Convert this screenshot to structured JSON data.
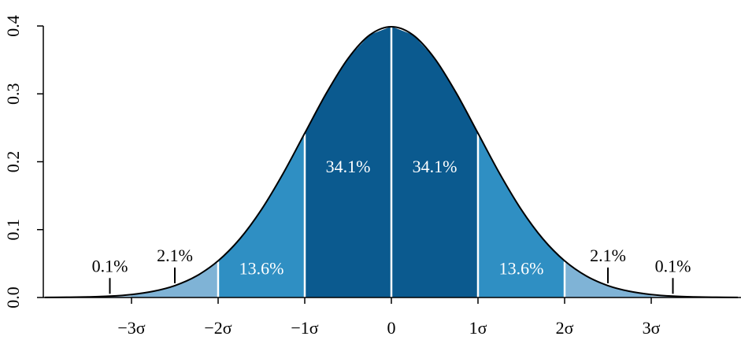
{
  "chart_data": {
    "type": "area",
    "xlim": [
      -4,
      4
    ],
    "ylim": [
      0,
      0.4
    ],
    "yticks": [
      {
        "value": 0,
        "label": "0.0"
      },
      0.1,
      0.2,
      0.3,
      0.4
    ],
    "xticks": [
      {
        "value": -3,
        "label": "−3σ"
      },
      {
        "value": -2,
        "label": "−2σ"
      },
      {
        "value": -1,
        "label": "−1σ"
      },
      0,
      {
        "value": 1,
        "label": "1σ"
      },
      {
        "value": 2,
        "label": "2σ"
      },
      {
        "value": 3,
        "label": "3σ"
      }
    ],
    "x": [
      -4,
      -3.75,
      -3.5,
      -3.25,
      -3,
      -2.75,
      -2.5,
      -2.25,
      -2,
      -1.75,
      -1.5,
      -1.25,
      -1,
      -0.75,
      -0.5,
      -0.25,
      0,
      0.25,
      0.5,
      0.75,
      1,
      1.25,
      1.5,
      1.75,
      2,
      2.25,
      2.5,
      2.75,
      3,
      3.25,
      3.5,
      3.75,
      4
    ],
    "values": [
      0.0001,
      0.0004,
      0.0009,
      0.002,
      0.0044,
      0.0091,
      0.0175,
      0.0317,
      0.054,
      0.0863,
      0.1295,
      0.1826,
      0.242,
      0.3011,
      0.3521,
      0.3867,
      0.3989,
      0.3867,
      0.3521,
      0.3011,
      0.242,
      0.1826,
      0.1295,
      0.0863,
      0.054,
      0.0317,
      0.0175,
      0.0091,
      0.0044,
      0.002,
      0.0009,
      0.0004,
      0.0001
    ],
    "line_color": "#000000",
    "regions": [
      {
        "from": null,
        "to": -3,
        "value": 0.1,
        "value_label": "0.1%",
        "color": "#a8cbe4"
      },
      {
        "from": -3,
        "to": -2,
        "value": 2.1,
        "value_label": "2.1%",
        "color": "#7fb3d6"
      },
      {
        "from": -2,
        "to": -1,
        "value": 13.6,
        "value_label": "13.6%",
        "color": "#2f8fc3"
      },
      {
        "from": -1,
        "to": 0,
        "value": 34.1,
        "value_label": "34.1%",
        "color": "#0b5a8f"
      },
      {
        "from": 0,
        "to": 1,
        "value": 34.1,
        "value_label": "34.1%",
        "color": "#0b5a8f"
      },
      {
        "from": 1,
        "to": 2,
        "value": 13.6,
        "value_label": "13.6%",
        "color": "#2f8fc3"
      },
      {
        "from": 2,
        "to": 3,
        "value": 2.1,
        "value_label": "2.1%",
        "color": "#7fb3d6"
      },
      {
        "from": 3,
        "to": null,
        "value": 0.1,
        "value_label": "0.1%",
        "color": "#a8cbe4"
      }
    ]
  }
}
